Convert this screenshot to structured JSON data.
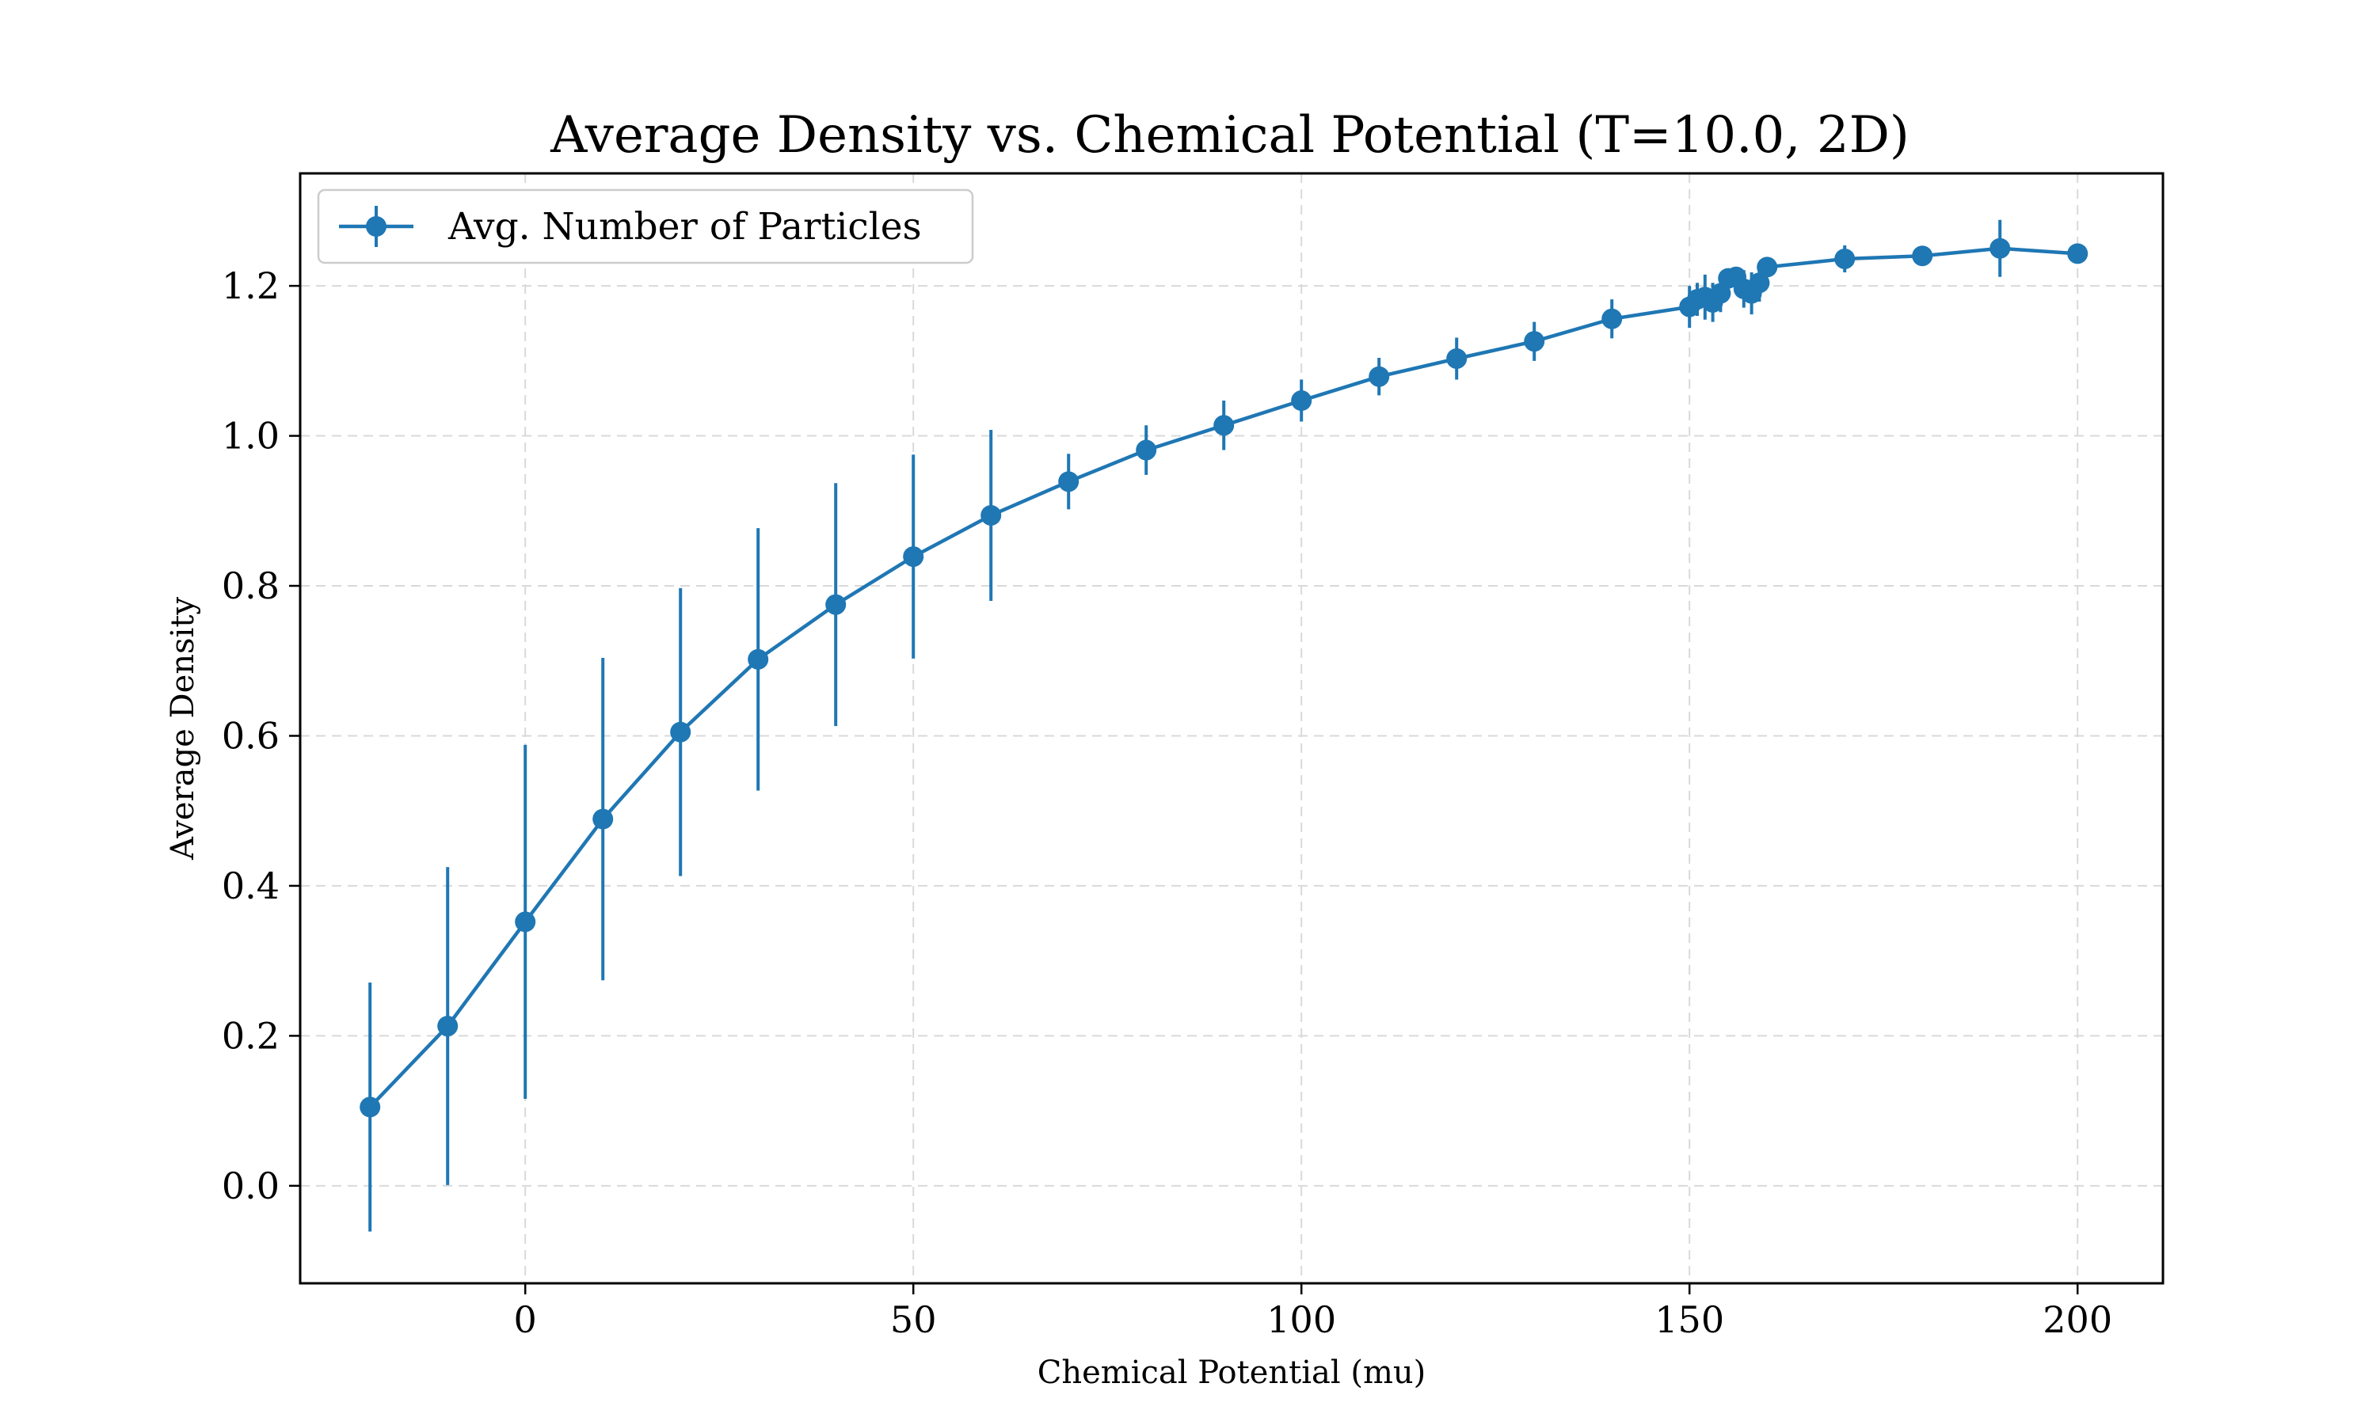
{
  "chart_data": {
    "type": "line",
    "title": "Average Density vs. Chemical Potential (T=10.0, 2D)",
    "xlabel": "Chemical Potential (mu)",
    "ylabel": "Average Density",
    "xlim": [
      -29,
      211
    ],
    "ylim": [
      -0.13,
      1.35
    ],
    "xticks": [
      0,
      50,
      100,
      150,
      200
    ],
    "xtick_labels": [
      "0",
      "50",
      "100",
      "150",
      "200"
    ],
    "yticks": [
      0.0,
      0.2,
      0.4,
      0.6,
      0.8,
      1.0,
      1.2
    ],
    "ytick_labels": [
      "0.0",
      "0.2",
      "0.4",
      "0.6",
      "0.8",
      "1.0",
      "1.2"
    ],
    "grid": true,
    "legend_position": "top-left",
    "color": "#1f77b4",
    "series": [
      {
        "name": "Avg. Number of Particles",
        "x": [
          -20,
          -10,
          0,
          10,
          20,
          30,
          40,
          50,
          60,
          70,
          80,
          90,
          100,
          110,
          120,
          130,
          140,
          150,
          151,
          152,
          153,
          154,
          155,
          156,
          157,
          158,
          159,
          160,
          170,
          180,
          190,
          200
        ],
        "y": [
          0.105,
          0.213,
          0.352,
          0.489,
          0.605,
          0.702,
          0.775,
          0.839,
          0.894,
          0.939,
          0.981,
          1.014,
          1.047,
          1.079,
          1.103,
          1.126,
          1.156,
          1.172,
          1.182,
          1.185,
          1.178,
          1.19,
          1.21,
          1.212,
          1.196,
          1.19,
          1.204,
          1.225,
          1.236,
          1.24,
          1.25,
          1.243
        ],
        "yerr": [
          0.166,
          0.212,
          0.236,
          0.215,
          0.192,
          0.175,
          0.162,
          0.136,
          0.114,
          0.037,
          0.033,
          0.033,
          0.028,
          0.025,
          0.028,
          0.026,
          0.026,
          0.028,
          0.022,
          0.03,
          0.026,
          0.025,
          0.009,
          0.009,
          0.025,
          0.028,
          0.025,
          0.011,
          0.018,
          0.009,
          0.038,
          0.009
        ]
      }
    ]
  }
}
